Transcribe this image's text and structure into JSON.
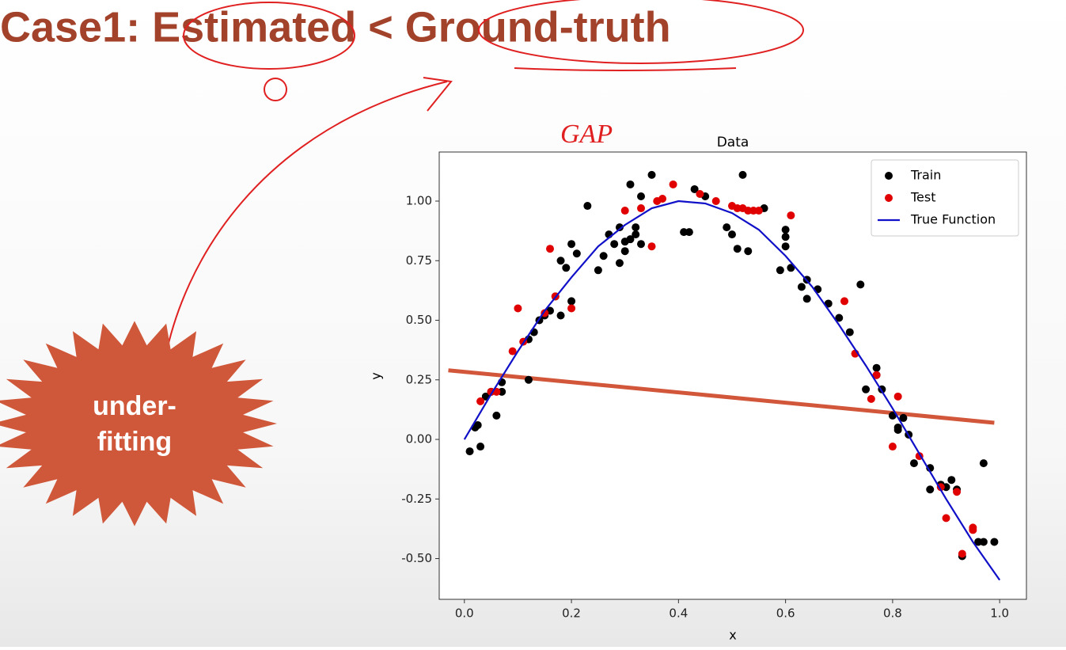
{
  "slide": {
    "title": "Case1: Estimated < Ground-truth",
    "burst_lines": [
      "under-",
      "fitting"
    ],
    "annotation": "GAP"
  },
  "chart_data": {
    "type": "scatter",
    "title": "Data",
    "x_label": "x",
    "y_label": "y",
    "xlim": [
      -0.047,
      1.05
    ],
    "ylim": [
      -0.671,
      1.206
    ],
    "xticks": [
      {
        "value": 0,
        "label": "0.0"
      },
      0.2,
      0.4,
      0.6,
      0.8,
      {
        "value": 1,
        "label": "1.0"
      }
    ],
    "yticks": [
      {
        "value": -0.5,
        "label": "-0.50"
      },
      -0.25,
      {
        "value": 0,
        "label": "0.00"
      },
      0.25,
      {
        "value": 0.5,
        "label": "0.50"
      },
      0.75,
      {
        "value": 1,
        "label": "1.00"
      }
    ],
    "legend": "upper right",
    "grid": false,
    "series": [
      {
        "name": "Train",
        "type": "scatter",
        "color": "#000000",
        "x": [
          0.01,
          0.02,
          0.025,
          0.03,
          0.06,
          0.04,
          0.05,
          0.07,
          0.07,
          0.12,
          0.12,
          0.13,
          0.14,
          0.15,
          0.16,
          0.17,
          0.18,
          0.18,
          0.19,
          0.2,
          0.2,
          0.21,
          0.23,
          0.25,
          0.26,
          0.27,
          0.28,
          0.29,
          0.29,
          0.3,
          0.3,
          0.31,
          0.31,
          0.32,
          0.32,
          0.33,
          0.33,
          0.35,
          0.41,
          0.42,
          0.43,
          0.45,
          0.49,
          0.5,
          0.51,
          0.52,
          0.53,
          0.56,
          0.59,
          0.6,
          0.6,
          0.6,
          0.61,
          0.63,
          0.64,
          0.64,
          0.66,
          0.68,
          0.7,
          0.72,
          0.74,
          0.75,
          0.77,
          0.77,
          0.78,
          0.8,
          0.81,
          0.81,
          0.82,
          0.83,
          0.84,
          0.87,
          0.87,
          0.89,
          0.9,
          0.91,
          0.92,
          0.93,
          0.96,
          0.97,
          0.97,
          0.99
        ],
        "values": [
          -0.05,
          0.05,
          0.06,
          -0.03,
          0.1,
          0.18,
          0.2,
          0.2,
          0.24,
          0.25,
          0.42,
          0.45,
          0.5,
          0.52,
          0.54,
          0.6,
          0.52,
          0.75,
          0.72,
          0.58,
          0.82,
          0.78,
          0.98,
          0.71,
          0.77,
          0.86,
          0.82,
          0.74,
          0.89,
          0.79,
          0.83,
          0.84,
          1.07,
          0.89,
          0.86,
          1.02,
          0.82,
          1.11,
          0.87,
          0.87,
          1.05,
          1.02,
          0.89,
          0.86,
          0.8,
          1.11,
          0.79,
          0.97,
          0.71,
          0.88,
          0.85,
          0.81,
          0.72,
          0.64,
          0.59,
          0.67,
          0.63,
          0.57,
          0.51,
          0.45,
          0.65,
          0.21,
          0.27,
          0.3,
          0.21,
          0.1,
          0.04,
          0.05,
          0.09,
          0.02,
          -0.1,
          -0.21,
          -0.12,
          -0.19,
          -0.2,
          -0.17,
          -0.21,
          -0.49,
          -0.43,
          -0.43,
          -0.1,
          -0.43
        ]
      },
      {
        "name": "Test",
        "type": "scatter",
        "color": "#e00000",
        "x": [
          0.03,
          0.05,
          0.06,
          0.09,
          0.1,
          0.11,
          0.15,
          0.16,
          0.17,
          0.2,
          0.3,
          0.33,
          0.35,
          0.36,
          0.37,
          0.39,
          0.44,
          0.47,
          0.5,
          0.51,
          0.52,
          0.53,
          0.54,
          0.55,
          0.61,
          0.71,
          0.73,
          0.76,
          0.77,
          0.8,
          0.81,
          0.85,
          0.89,
          0.9,
          0.92,
          0.93,
          0.95,
          0.95
        ],
        "values": [
          0.16,
          0.2,
          0.2,
          0.37,
          0.55,
          0.41,
          0.53,
          0.8,
          0.6,
          0.55,
          0.96,
          0.97,
          0.81,
          1.0,
          1.01,
          1.07,
          1.03,
          1.0,
          0.98,
          0.97,
          0.97,
          0.96,
          0.96,
          0.96,
          0.94,
          0.58,
          0.36,
          0.17,
          0.27,
          -0.03,
          0.18,
          -0.07,
          -0.2,
          -0.33,
          -0.22,
          -0.48,
          -0.37,
          -0.38
        ]
      },
      {
        "name": "True Function",
        "type": "line",
        "color": "#1010c8",
        "x": [
          0,
          0.05,
          0.1,
          0.15,
          0.2,
          0.25,
          0.3,
          0.35,
          0.4,
          0.45,
          0.5,
          0.55,
          0.6,
          0.65,
          0.7,
          0.75,
          0.8,
          0.85,
          0.9,
          0.95,
          1.0
        ],
        "values": [
          0,
          0.19,
          0.37,
          0.54,
          0.68,
          0.81,
          0.9,
          0.97,
          1.0,
          0.99,
          0.95,
          0.88,
          0.77,
          0.64,
          0.48,
          0.31,
          0.13,
          -0.06,
          -0.25,
          -0.43,
          -0.59
        ]
      },
      {
        "type": "line",
        "color": "#d2563a",
        "x": [
          -0.03,
          0.99
        ],
        "values": [
          0.29,
          0.07
        ]
      }
    ]
  }
}
